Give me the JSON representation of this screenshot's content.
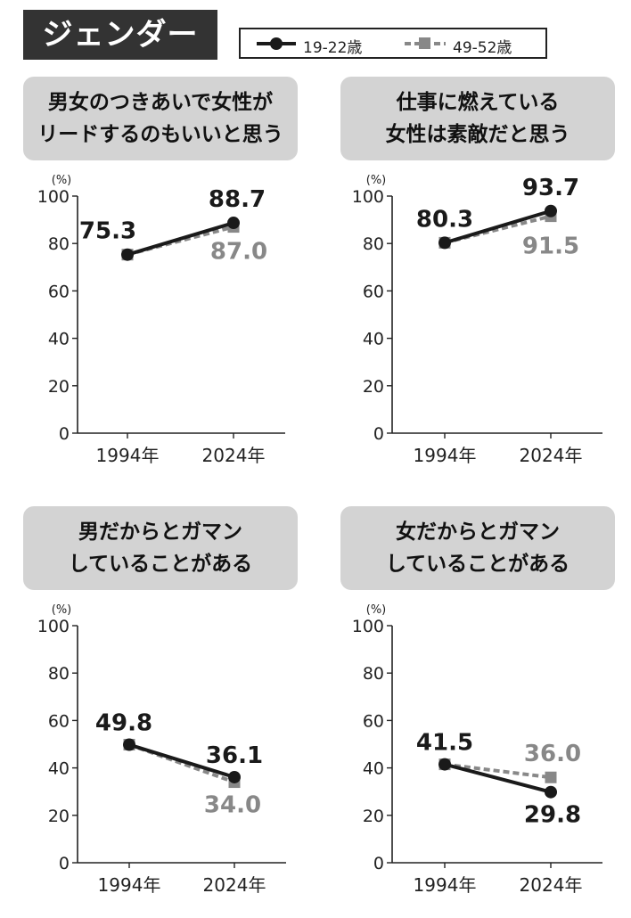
{
  "section_tag": "ジェンダー",
  "legend": {
    "series_a": "19-22歳",
    "series_b": "49-52歳"
  },
  "colors": {
    "series_a": "#1a1a1a",
    "series_b": "#888888",
    "title_bg": "#d3d3d3",
    "tag_bg": "#333333"
  },
  "chart_data": [
    {
      "type": "line",
      "title_lines": [
        "男女のつきあいで女性が",
        "リードするのもいいと思う"
      ],
      "ylabel": "(%)",
      "categories": [
        "1994年",
        "2024年"
      ],
      "ylim": [
        0,
        100
      ],
      "yticks": [
        0,
        20,
        40,
        60,
        80,
        100
      ],
      "series": [
        {
          "name": "19-22歳",
          "values": [
            75.3,
            88.7
          ],
          "labels": [
            "75.3",
            "88.7"
          ],
          "color": "#1a1a1a",
          "style": "solid",
          "marker": "circle"
        },
        {
          "name": "49-52歳",
          "values": [
            75.3,
            87.0
          ],
          "labels": [
            "",
            "87.0"
          ],
          "color": "#888888",
          "style": "dashed",
          "marker": "square"
        }
      ]
    },
    {
      "type": "line",
      "title_lines": [
        "仕事に燃えている",
        "女性は素敵だと思う"
      ],
      "ylabel": "(%)",
      "categories": [
        "1994年",
        "2024年"
      ],
      "ylim": [
        0,
        100
      ],
      "yticks": [
        0,
        20,
        40,
        60,
        80,
        100
      ],
      "series": [
        {
          "name": "19-22歳",
          "values": [
            80.3,
            93.7
          ],
          "labels": [
            "80.3",
            "93.7"
          ],
          "color": "#1a1a1a",
          "style": "solid",
          "marker": "circle"
        },
        {
          "name": "49-52歳",
          "values": [
            80.3,
            91.5
          ],
          "labels": [
            "",
            "91.5"
          ],
          "color": "#888888",
          "style": "dashed",
          "marker": "square"
        }
      ]
    },
    {
      "type": "line",
      "title_lines": [
        "男だからとガマン",
        "していることがある"
      ],
      "ylabel": "(%)",
      "categories": [
        "1994年",
        "2024年"
      ],
      "ylim": [
        0,
        100
      ],
      "yticks": [
        0,
        20,
        40,
        60,
        80,
        100
      ],
      "series": [
        {
          "name": "19-22歳",
          "values": [
            49.8,
            36.1
          ],
          "labels": [
            "49.8",
            "36.1"
          ],
          "color": "#1a1a1a",
          "style": "solid",
          "marker": "circle"
        },
        {
          "name": "49-52歳",
          "values": [
            49.8,
            34.0
          ],
          "labels": [
            "",
            "34.0"
          ],
          "color": "#888888",
          "style": "dashed",
          "marker": "square"
        }
      ]
    },
    {
      "type": "line",
      "title_lines": [
        "女だからとガマン",
        "していることがある"
      ],
      "ylabel": "(%)",
      "categories": [
        "1994年",
        "2024年"
      ],
      "ylim": [
        0,
        100
      ],
      "yticks": [
        0,
        20,
        40,
        60,
        80,
        100
      ],
      "series": [
        {
          "name": "19-22歳",
          "values": [
            41.5,
            29.8
          ],
          "labels": [
            "41.5",
            "29.8"
          ],
          "color": "#1a1a1a",
          "style": "solid",
          "marker": "circle"
        },
        {
          "name": "49-52歳",
          "values": [
            41.5,
            36.0
          ],
          "labels": [
            "",
            "36.0"
          ],
          "color": "#888888",
          "style": "dashed",
          "marker": "square"
        }
      ]
    }
  ]
}
